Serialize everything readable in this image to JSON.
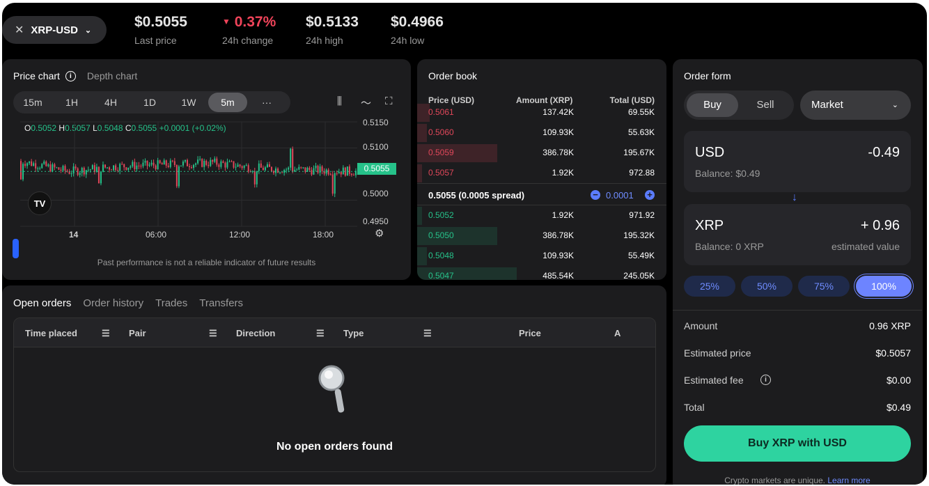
{
  "ticker": {
    "pair": "XRP-USD",
    "last_price": "$0.5055",
    "last_price_label": "Last price",
    "change": "0.37%",
    "change_label": "24h change",
    "high": "$0.5133",
    "high_label": "24h high",
    "low": "$0.4966",
    "low_label": "24h low",
    "colors": {
      "down": "#f0445a",
      "up": "#26c28a"
    }
  },
  "chart": {
    "tab_price": "Price chart",
    "tab_depth": "Depth chart",
    "timeframes": [
      "15m",
      "1H",
      "4H",
      "1D",
      "1W",
      "5m"
    ],
    "active_timeframe": "5m",
    "more": "···",
    "ohlc": {
      "o_label": "O",
      "o": "0.5052",
      "h_label": "H",
      "h": "0.5057",
      "l_label": "L",
      "l": "0.5048",
      "c_label": "C",
      "c": "0.5055",
      "chg": "+0.0001 (+0.02%)"
    },
    "y_ticks": [
      "0.5150",
      "0.5100",
      "0.5050",
      "0.5000",
      "0.4950"
    ],
    "current_price": "0.5055",
    "x_ticks": [
      "14",
      "06:00",
      "12:00",
      "18:00"
    ],
    "logo_text": "TV",
    "disclaimer": "Past performance is not a reliable indicator of future results"
  },
  "chart_data": {
    "type": "line",
    "title": "",
    "xlabel": "",
    "ylabel": "",
    "ylim": [
      0.495,
      0.515
    ],
    "x": [
      "14 00:00",
      "14 03:00",
      "14 06:00",
      "14 09:00",
      "14 12:00",
      "14 15:00",
      "14 18:00",
      "14 21:00"
    ],
    "series": [
      {
        "values": [
          0.5075,
          0.5055,
          0.5065,
          0.5068,
          0.5072,
          0.5061,
          0.5058,
          0.5055
        ]
      }
    ],
    "grid": true
  },
  "orderbook": {
    "title": "Order book",
    "headers": [
      "Price (USD)",
      "Amount (XRP)",
      "Total (USD)"
    ],
    "asks": [
      {
        "price": "0.5061",
        "amount": "137.42K",
        "total": "69.55K",
        "depth": 0.05
      },
      {
        "price": "0.5060",
        "amount": "109.93K",
        "total": "55.63K",
        "depth": 0.04
      },
      {
        "price": "0.5059",
        "amount": "386.78K",
        "total": "195.67K",
        "depth": 0.32
      },
      {
        "price": "0.5057",
        "amount": "1.92K",
        "total": "972.88",
        "depth": 0.02
      }
    ],
    "spread_text": "0.5055 (0.0005 spread)",
    "spread_minus": "−",
    "spread_step": "0.0001",
    "spread_plus": "+",
    "bids": [
      {
        "price": "0.5052",
        "amount": "1.92K",
        "total": "971.92",
        "depth": 0.02
      },
      {
        "price": "0.5050",
        "amount": "386.78K",
        "total": "195.32K",
        "depth": 0.32
      },
      {
        "price": "0.5048",
        "amount": "109.93K",
        "total": "55.49K",
        "depth": 0.04
      },
      {
        "price": "0.5047",
        "amount": "485.54K",
        "total": "245.05K",
        "depth": 0.4
      }
    ]
  },
  "orders": {
    "tabs": [
      "Open orders",
      "Order history",
      "Trades",
      "Transfers"
    ],
    "columns": [
      "Time placed",
      "Pair",
      "Direction",
      "Type",
      "Price",
      "A"
    ],
    "empty": "No open orders found"
  },
  "form": {
    "title": "Order form",
    "buy": "Buy",
    "sell": "Sell",
    "order_type": "Market",
    "pay": {
      "currency": "USD",
      "amount": "-0.49",
      "balance": "Balance: $0.49"
    },
    "receive": {
      "currency": "XRP",
      "amount": "+ 0.96",
      "balance": "Balance: 0 XRP",
      "note": "estimated value"
    },
    "percents": [
      "25%",
      "50%",
      "75%",
      "100%"
    ],
    "summary": [
      {
        "label": "Amount",
        "value": "0.96 XRP"
      },
      {
        "label": "Estimated price",
        "value": "$0.5057"
      },
      {
        "label": "Estimated fee",
        "value": "$0.00"
      },
      {
        "label": "Total",
        "value": "$0.49"
      }
    ],
    "submit": "Buy XRP with USD",
    "footer": "Crypto markets are unique.",
    "footer_link": "Learn more",
    "accent": "#2ed3a0"
  }
}
